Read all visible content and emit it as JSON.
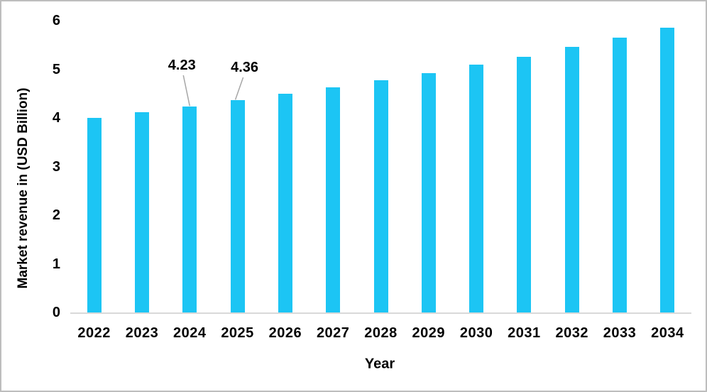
{
  "chart_data": {
    "type": "bar",
    "title": "",
    "xlabel": "Year",
    "ylabel": "Market revenue in (USD Billion)",
    "categories": [
      "2022",
      "2023",
      "2024",
      "2025",
      "2026",
      "2027",
      "2028",
      "2029",
      "2030",
      "2031",
      "2032",
      "2033",
      "2034"
    ],
    "values": [
      4.0,
      4.11,
      4.23,
      4.36,
      4.49,
      4.63,
      4.77,
      4.92,
      5.09,
      5.26,
      5.46,
      5.65,
      5.85
    ],
    "y_ticks": [
      0,
      1,
      2,
      3,
      4,
      5,
      6
    ],
    "ylim": [
      0,
      6
    ],
    "grid": false,
    "legend": "none",
    "annotations": [
      {
        "year": "2024",
        "label": "4.23"
      },
      {
        "year": "2025",
        "label": "4.36"
      }
    ],
    "colors": {
      "bar": "#1cc5f4",
      "leader_line": "#a6a6a6",
      "axis_line": "#d9d9d9",
      "text": "#000000"
    }
  }
}
